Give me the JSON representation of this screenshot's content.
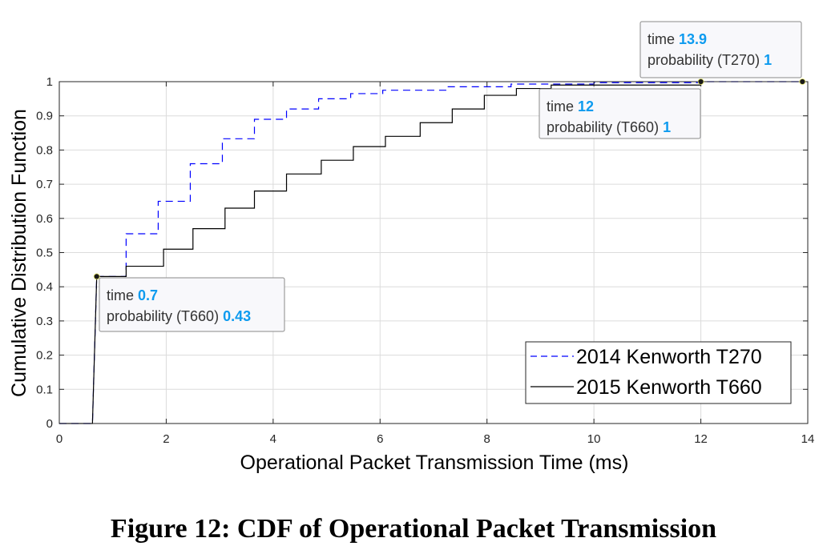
{
  "chart_data": {
    "type": "line",
    "title": "",
    "xlabel": "Operational Packet Transmission Time (ms)",
    "ylabel": "Cumulative Distribution Function",
    "xlim": [
      0,
      14
    ],
    "ylim": [
      0,
      1
    ],
    "xticks": [
      "0",
      "2",
      "4",
      "6",
      "8",
      "10",
      "12",
      "14"
    ],
    "yticks": [
      "0",
      "0.1",
      "0.2",
      "0.3",
      "0.4",
      "0.5",
      "0.6",
      "0.7",
      "0.8",
      "0.9",
      "1"
    ],
    "grid": true,
    "legend_position": "bottom-right",
    "series": [
      {
        "name": "2014 Kenworth T270",
        "style": "dashed",
        "color": "#0000ff",
        "x": [
          0,
          0.62,
          0.7,
          1.25,
          1.85,
          2.45,
          3.05,
          3.65,
          4.25,
          4.85,
          5.45,
          6.05,
          7.25,
          8.45,
          10.0,
          12.0,
          13.9
        ],
        "y": [
          0,
          0,
          0.43,
          0.555,
          0.65,
          0.76,
          0.833,
          0.89,
          0.92,
          0.95,
          0.965,
          0.975,
          0.985,
          0.993,
          0.997,
          1.0,
          1.0
        ]
      },
      {
        "name": "2015 Kenworth T660",
        "style": "solid",
        "color": "#000000",
        "x": [
          0,
          0.62,
          0.7,
          1.25,
          1.95,
          2.5,
          3.1,
          3.65,
          4.25,
          4.9,
          5.5,
          6.1,
          6.75,
          7.35,
          7.95,
          8.55,
          9.2,
          12.0
        ],
        "y": [
          0,
          0,
          0.43,
          0.46,
          0.51,
          0.57,
          0.63,
          0.68,
          0.73,
          0.77,
          0.81,
          0.84,
          0.88,
          0.92,
          0.96,
          0.98,
          0.99,
          1.0
        ]
      }
    ],
    "datatips": [
      {
        "x": 0.7,
        "y": 0.43,
        "time_label": "time",
        "time_value": "0.7",
        "prob_label": "probability (T660)",
        "prob_value": "0.43"
      },
      {
        "x": 12,
        "y": 1,
        "time_label": "time",
        "time_value": "12",
        "prob_label": "probability (T660)",
        "prob_value": "1"
      },
      {
        "x": 13.9,
        "y": 1,
        "time_label": "time",
        "time_value": "13.9",
        "prob_label": "probability (T270)",
        "prob_value": "1"
      }
    ],
    "caption": "Figure 12: CDF of Operational Packet Transmission"
  },
  "colors": {
    "tip_value": "#0e9bef",
    "grid": "#dcdcdc",
    "axis": "#262626"
  }
}
